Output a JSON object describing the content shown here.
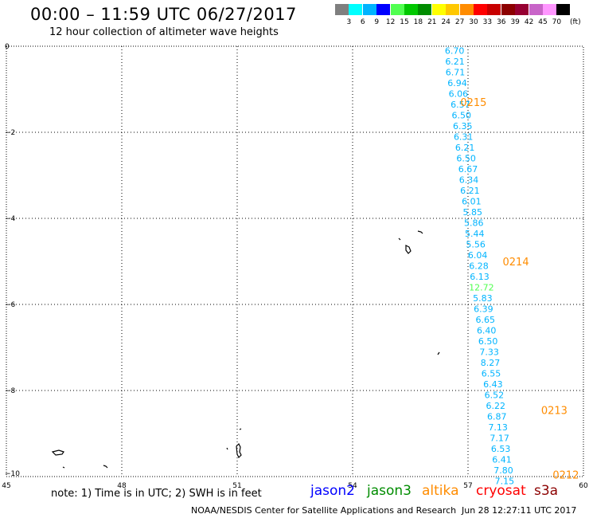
{
  "header": {
    "title": "00:00 – 11:59 UTC 06/27/2017",
    "subtitle": "12 hour collection of altimeter wave heights"
  },
  "color_scale": {
    "colors": [
      "#7f7f7f",
      "#00ffff",
      "#00b4ff",
      "#0000ff",
      "#50ff50",
      "#00c800",
      "#008c00",
      "#ffff00",
      "#ffc800",
      "#ff8c00",
      "#ff0000",
      "#c80000",
      "#8c0000",
      "#960032",
      "#c864c8",
      "#ff96ff",
      "#000000"
    ],
    "labels": [
      "3",
      "6",
      "9",
      "12",
      "15",
      "18",
      "21",
      "24",
      "27",
      "30",
      "33",
      "36",
      "39",
      "42",
      "45",
      "70"
    ],
    "unit": "(ft)"
  },
  "map": {
    "lon_range": [
      45,
      60
    ],
    "lat_range": [
      -10,
      0
    ],
    "x_ticks": [
      "45",
      "48",
      "51",
      "54",
      "57",
      "60"
    ],
    "y_ticks": [
      "0",
      "−2",
      "−4",
      "−6",
      "−8",
      "−10"
    ],
    "grid": "dotted",
    "passes": [
      {
        "label": "0215",
        "lon": 56.8,
        "lat": -1.3,
        "color": "#ff8c00"
      },
      {
        "label": "0214",
        "lon": 57.9,
        "lat": -5.0,
        "color": "#ff8c00"
      },
      {
        "label": "0213",
        "lon": 58.9,
        "lat": -8.45,
        "color": "#ff8c00"
      },
      {
        "label": "0212",
        "lon": 59.2,
        "lat": -9.95,
        "color": "#ff8c00"
      }
    ],
    "measurements": [
      {
        "v": "6.70",
        "lon": 56.65,
        "lat": -0.1
      },
      {
        "v": "6.21",
        "lon": 56.66,
        "lat": -0.35
      },
      {
        "v": "6.71",
        "lon": 56.67,
        "lat": -0.6
      },
      {
        "v": "6.94",
        "lon": 56.72,
        "lat": -0.85
      },
      {
        "v": "6.06",
        "lon": 56.75,
        "lat": -1.1
      },
      {
        "v": "6.57",
        "lon": 56.8,
        "lat": -1.35
      },
      {
        "v": "6.50",
        "lon": 56.83,
        "lat": -1.6
      },
      {
        "v": "6.35",
        "lon": 56.86,
        "lat": -1.85
      },
      {
        "v": "6.31",
        "lon": 56.88,
        "lat": -2.1
      },
      {
        "v": "6.21",
        "lon": 56.92,
        "lat": -2.35
      },
      {
        "v": "6.50",
        "lon": 56.95,
        "lat": -2.6
      },
      {
        "v": "6.67",
        "lon": 57.0,
        "lat": -2.85
      },
      {
        "v": "6.34",
        "lon": 57.02,
        "lat": -3.1
      },
      {
        "v": "6.21",
        "lon": 57.05,
        "lat": -3.35
      },
      {
        "v": "6.01",
        "lon": 57.09,
        "lat": -3.6
      },
      {
        "v": "5.85",
        "lon": 57.12,
        "lat": -3.85
      },
      {
        "v": "5.86",
        "lon": 57.15,
        "lat": -4.1
      },
      {
        "v": "5.44",
        "lon": 57.17,
        "lat": -4.35
      },
      {
        "v": "5.56",
        "lon": 57.2,
        "lat": -4.6
      },
      {
        "v": "6.04",
        "lon": 57.25,
        "lat": -4.85
      },
      {
        "v": "6.28",
        "lon": 57.28,
        "lat": -5.1
      },
      {
        "v": "6.13",
        "lon": 57.3,
        "lat": -5.35
      },
      {
        "v": "12.72",
        "lon": 57.35,
        "lat": -5.6,
        "color": "#50ff50"
      },
      {
        "v": "5.83",
        "lon": 57.38,
        "lat": -5.85
      },
      {
        "v": "6.39",
        "lon": 57.4,
        "lat": -6.1
      },
      {
        "v": "6.65",
        "lon": 57.45,
        "lat": -6.35
      },
      {
        "v": "6.40",
        "lon": 57.48,
        "lat": -6.6
      },
      {
        "v": "6.50",
        "lon": 57.52,
        "lat": -6.85
      },
      {
        "v": "7.33",
        "lon": 57.55,
        "lat": -7.1
      },
      {
        "v": "8.27",
        "lon": 57.58,
        "lat": -7.35
      },
      {
        "v": "6.55",
        "lon": 57.6,
        "lat": -7.6
      },
      {
        "v": "6.43",
        "lon": 57.65,
        "lat": -7.85
      },
      {
        "v": "6.52",
        "lon": 57.68,
        "lat": -8.1
      },
      {
        "v": "6.22",
        "lon": 57.72,
        "lat": -8.35
      },
      {
        "v": "6.87",
        "lon": 57.75,
        "lat": -8.6
      },
      {
        "v": "7.13",
        "lon": 57.78,
        "lat": -8.85
      },
      {
        "v": "7.17",
        "lon": 57.82,
        "lat": -9.1
      },
      {
        "v": "6.53",
        "lon": 57.85,
        "lat": -9.35
      },
      {
        "v": "6.41",
        "lon": 57.88,
        "lat": -9.6
      },
      {
        "v": "7.80",
        "lon": 57.92,
        "lat": -9.85
      },
      {
        "v": "7.15",
        "lon": 57.95,
        "lat": -10.1
      }
    ],
    "default_value_color": "#00b4ff"
  },
  "footer": {
    "note": "note:  1) Time is in UTC;  2) SWH is in feet",
    "satellites": [
      {
        "name": "jason2",
        "color": "#0000ff"
      },
      {
        "name": "jason3",
        "color": "#008c00"
      },
      {
        "name": "altika",
        "color": "#ff8c00"
      },
      {
        "name": "cryosat",
        "color": "#ff0000"
      },
      {
        "name": "s3a",
        "color": "#8c0000"
      }
    ],
    "credit": "NOAA/NESDIS Center for Satellite Applications and Research",
    "timestamp": "Jun 28 12:27:11 UTC 2017"
  }
}
